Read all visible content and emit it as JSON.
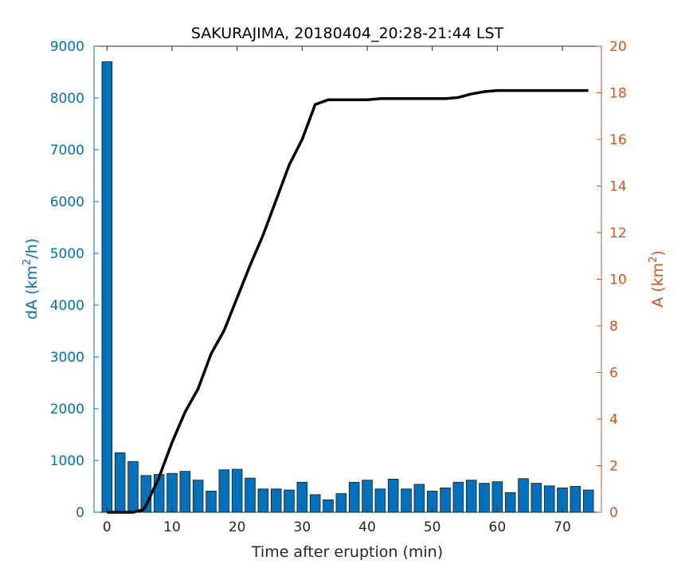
{
  "chart_data": {
    "type": "bar",
    "title": "SAKURAJIMA, 20180404_20:28-21:44 LST",
    "xlabel": "Time after eruption (min)",
    "ylabel_left": {
      "base": "dA (km",
      "sup": "2",
      "tail": "/h)"
    },
    "ylabel_right": {
      "base": "A (km",
      "sup": "2",
      "tail": ")"
    },
    "xlim": [
      -2,
      76
    ],
    "ylim_left": [
      0,
      9000
    ],
    "ylim_right": [
      0,
      20
    ],
    "xticks": [
      0,
      10,
      20,
      30,
      40,
      50,
      60,
      70
    ],
    "yticks_left": [
      0,
      1000,
      2000,
      3000,
      4000,
      5000,
      6000,
      7000,
      8000,
      9000
    ],
    "yticks_right": [
      0,
      2,
      4,
      6,
      8,
      10,
      12,
      14,
      16,
      18,
      20
    ],
    "bar_color": "#0072BD",
    "left_axis_color": "#0072BD",
    "right_axis_color": "#D95319",
    "line_color": "#000000",
    "bars": {
      "x": [
        0,
        2,
        4,
        6,
        8,
        10,
        12,
        14,
        16,
        18,
        20,
        22,
        24,
        26,
        28,
        30,
        32,
        34,
        36,
        38,
        40,
        42,
        44,
        46,
        48,
        50,
        52,
        54,
        56,
        58,
        60,
        62,
        64,
        66,
        68,
        70,
        72,
        74
      ],
      "values": [
        8700,
        1150,
        980,
        710,
        730,
        750,
        790,
        620,
        410,
        820,
        830,
        660,
        450,
        450,
        430,
        580,
        340,
        240,
        360,
        580,
        620,
        450,
        640,
        450,
        540,
        410,
        470,
        580,
        620,
        560,
        590,
        380,
        650,
        560,
        510,
        470,
        500,
        430
      ]
    },
    "line": {
      "x": [
        0,
        2,
        4,
        5.5,
        6,
        8,
        10,
        12,
        14,
        16,
        18,
        20,
        22,
        24,
        26,
        28,
        30,
        32,
        34,
        36,
        38,
        40,
        42,
        44,
        46,
        48,
        50,
        52,
        54,
        56,
        58,
        60,
        62,
        64,
        66,
        68,
        70,
        72,
        74
      ],
      "values": [
        0,
        0,
        0,
        0.1,
        0.3,
        1.5,
        3.0,
        4.3,
        5.3,
        6.8,
        7.8,
        9.2,
        10.6,
        11.9,
        13.4,
        14.9,
        16.0,
        17.5,
        17.7,
        17.7,
        17.7,
        17.7,
        17.75,
        17.75,
        17.75,
        17.75,
        17.75,
        17.75,
        17.8,
        17.95,
        18.05,
        18.1,
        18.1,
        18.1,
        18.1,
        18.1,
        18.1,
        18.1,
        18.1
      ]
    }
  }
}
